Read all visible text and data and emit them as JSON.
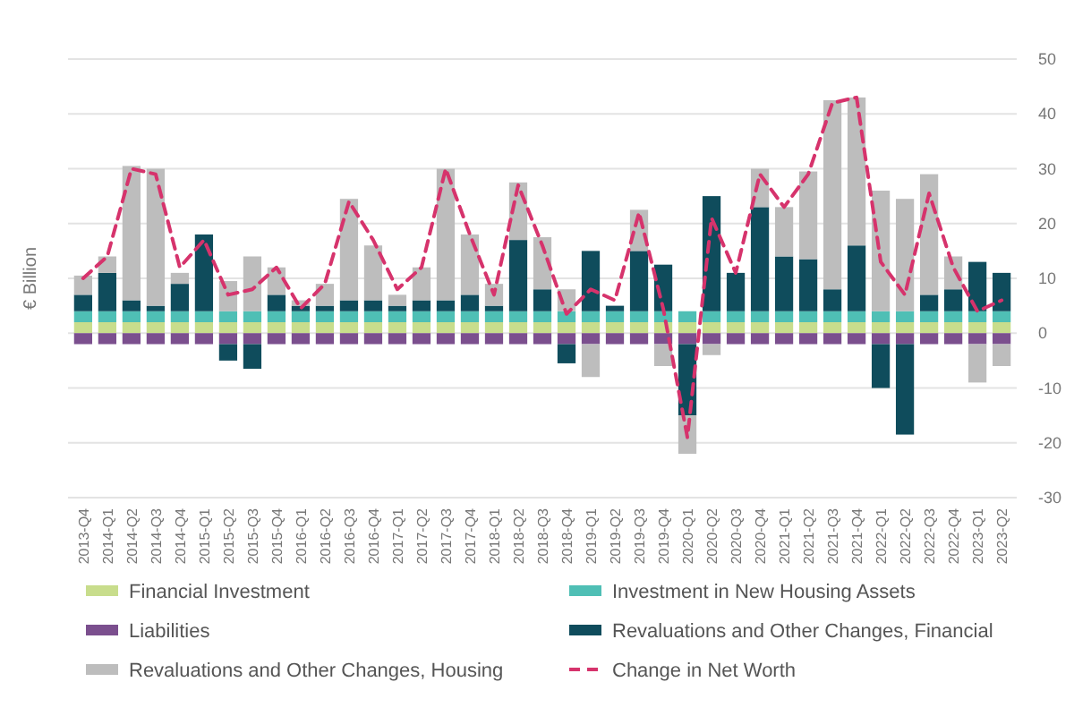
{
  "chart_data": {
    "type": "bar",
    "stacked": true,
    "ylabel": "€ Billion",
    "legend": "bottom",
    "grid": "y",
    "ylim": [
      -30,
      50
    ],
    "yticks": [
      -30,
      -20,
      -10,
      0,
      10,
      20,
      30,
      40,
      50
    ],
    "categories": [
      "2013-Q4",
      "2014-Q1",
      "2014-Q2",
      "2014-Q3",
      "2014-Q4",
      "2015-Q1",
      "2015-Q2",
      "2015-Q3",
      "2015-Q4",
      "2016-Q1",
      "2016-Q2",
      "2016-Q3",
      "2016-Q4",
      "2017-Q1",
      "2017-Q2",
      "2017-Q3",
      "2017-Q4",
      "2018-Q1",
      "2018-Q2",
      "2018-Q3",
      "2018-Q4",
      "2019-Q1",
      "2019-Q2",
      "2019-Q3",
      "2019-Q4",
      "2020-Q1",
      "2020-Q2",
      "2020-Q3",
      "2020-Q4",
      "2021-Q1",
      "2021-Q2",
      "2021-Q3",
      "2021-Q4",
      "2022-Q1",
      "2022-Q2",
      "2022-Q3",
      "2022-Q4",
      "2023-Q1",
      "2023-Q2"
    ],
    "series": [
      {
        "name": "Financial Investment",
        "color": "#c8dd8c",
        "values": [
          2,
          2,
          2,
          2,
          2,
          2,
          2,
          2,
          2,
          2,
          2,
          2,
          2,
          2,
          2,
          2,
          2,
          2,
          2,
          2,
          2,
          2,
          2,
          2,
          2,
          2,
          2,
          2,
          2,
          2,
          2,
          2,
          2,
          2,
          2,
          2,
          2,
          2,
          2
        ]
      },
      {
        "name": "Investment in New Housing Assets",
        "color": "#4fbfb5",
        "values": [
          2,
          2,
          2,
          2,
          2,
          2,
          2,
          2,
          2,
          2,
          2,
          2,
          2,
          2,
          2,
          2,
          2,
          2,
          2,
          2,
          2,
          2,
          2,
          2,
          2,
          2,
          2,
          2,
          2,
          2,
          2,
          2,
          2,
          2,
          2,
          2,
          2,
          2,
          2
        ]
      },
      {
        "name": "Liabilities",
        "color": "#7b4f8e",
        "values": [
          -2,
          -2,
          -2,
          -2,
          -2,
          -2,
          -2,
          -2,
          -2,
          -2,
          -2,
          -2,
          -2,
          -2,
          -2,
          -2,
          -2,
          -2,
          -2,
          -2,
          -2,
          -2,
          -2,
          -2,
          -2,
          -2,
          -2,
          -2,
          -2,
          -2,
          -2,
          -2,
          -2,
          -2,
          -2,
          -2,
          -2,
          -2,
          -2
        ]
      },
      {
        "name": "Revaluations and Other Changes, Financial",
        "color": "#0f4c5c",
        "values": [
          3,
          7,
          2,
          1,
          5,
          14,
          -3,
          -4.5,
          3,
          1,
          1,
          2,
          2,
          1,
          2,
          2,
          3,
          1,
          13,
          4,
          -3.5,
          11,
          1,
          11,
          8.5,
          -13,
          21,
          7,
          19,
          10,
          9.5,
          4,
          12,
          -8,
          -16.5,
          3,
          4,
          9,
          7
        ]
      },
      {
        "name": "Revaluations and Other Changes, Housing",
        "color": "#bdbdbd",
        "values": [
          3.5,
          3,
          24.5,
          25,
          2,
          0,
          5.5,
          10,
          5,
          1,
          4,
          18.5,
          10,
          2,
          6,
          24,
          11,
          4,
          10.5,
          9.5,
          4,
          -6,
          0,
          7.5,
          -4,
          -7,
          -2,
          0,
          7,
          9,
          16,
          34.5,
          27,
          22,
          20.5,
          22,
          6,
          -7,
          -4
        ]
      },
      {
        "name": "Change in Net Worth",
        "type": "line",
        "color": "#d6336c",
        "line_style": "dashed",
        "marker": "none",
        "values": [
          10,
          14,
          30,
          29,
          12,
          17,
          7,
          8,
          12,
          4.5,
          9,
          24,
          17,
          8,
          12,
          30,
          18,
          7,
          27,
          16,
          3.5,
          8,
          6,
          22,
          4.5,
          -19,
          21,
          11,
          29,
          23,
          29,
          42,
          43,
          13,
          7,
          25.5,
          12,
          4,
          6
        ]
      }
    ]
  }
}
